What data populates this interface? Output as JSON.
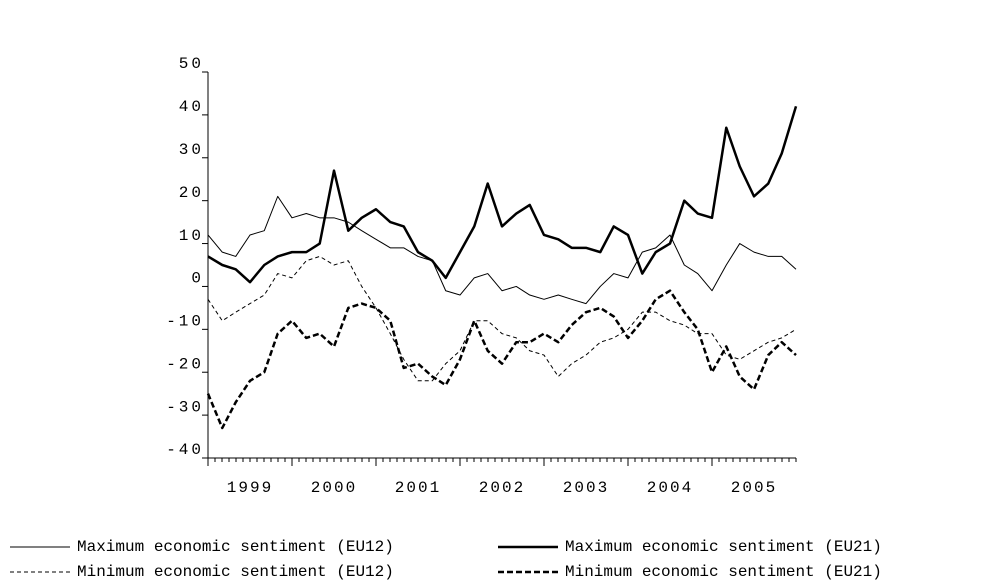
{
  "chart_data": {
    "type": "line",
    "x": [
      1999,
      1999.17,
      1999.33,
      1999.5,
      1999.67,
      1999.83,
      2000,
      2000.17,
      2000.33,
      2000.5,
      2000.67,
      2000.83,
      2001,
      2001.17,
      2001.33,
      2001.5,
      2001.67,
      2001.83,
      2002,
      2002.17,
      2002.33,
      2002.5,
      2002.67,
      2002.83,
      2003,
      2003.17,
      2003.33,
      2003.5,
      2003.67,
      2003.83,
      2004,
      2004.17,
      2004.33,
      2004.5,
      2004.67,
      2004.83,
      2005,
      2005.17,
      2005.33,
      2005.5,
      2005.67,
      2005.83,
      2006
    ],
    "xlim": [
      1999,
      2006
    ],
    "xticks": [
      1999,
      2000,
      2001,
      2002,
      2003,
      2004,
      2005
    ],
    "ylim": [
      -40,
      50
    ],
    "yticks": [
      -40,
      -30,
      -20,
      -10,
      0,
      10,
      20,
      30,
      40,
      50
    ],
    "series": [
      {
        "name": "Maximum economic sentiment (EU12)",
        "color": "#000000",
        "width": 1,
        "dashed": false,
        "values": [
          12,
          8,
          7,
          12,
          13,
          21,
          16,
          17,
          16,
          16,
          15,
          13,
          11,
          9,
          9,
          7,
          6,
          -1,
          -2,
          2,
          3,
          -1,
          0,
          -2,
          -3,
          -2,
          -3,
          -4,
          0,
          3,
          2,
          8,
          9,
          12,
          5,
          3,
          -1,
          5,
          10,
          8,
          7,
          7,
          4
        ]
      },
      {
        "name": "Maximum economic sentiment (EU21)",
        "color": "#000000",
        "width": 2.5,
        "dashed": false,
        "values": [
          7,
          5,
          4,
          1,
          5,
          7,
          8,
          8,
          10,
          27,
          13,
          16,
          18,
          15,
          14,
          8,
          6,
          2,
          8,
          14,
          24,
          14,
          17,
          19,
          12,
          11,
          9,
          9,
          8,
          14,
          12,
          3,
          8,
          10,
          20,
          17,
          16,
          37,
          28,
          21,
          24,
          31,
          42
        ]
      },
      {
        "name": "Minimum economic sentiment (EU12)",
        "color": "#000000",
        "width": 1,
        "dashed": true,
        "values": [
          -3,
          -8,
          -6,
          -4,
          -2,
          3,
          2,
          6,
          7,
          5,
          6,
          0,
          -5,
          -11,
          -17,
          -22,
          -22,
          -18,
          -15,
          -8,
          -8,
          -11,
          -12,
          -15,
          -16,
          -21,
          -18,
          -16,
          -13,
          -12,
          -10,
          -6,
          -6,
          -8,
          -9,
          -11,
          -11,
          -16,
          -17,
          -15,
          -13,
          -12,
          -10
        ]
      },
      {
        "name": "Minimum economic sentiment (EU21)",
        "color": "#000000",
        "width": 2.5,
        "dashed": true,
        "values": [
          -25,
          -33,
          -27,
          -22,
          -20,
          -11,
          -8,
          -12,
          -11,
          -14,
          -5,
          -4,
          -5,
          -8,
          -19,
          -18,
          -21,
          -23,
          -17,
          -8,
          -15,
          -18,
          -13,
          -13,
          -11,
          -13,
          -9,
          -6,
          -5,
          -7,
          -12,
          -8,
          -3,
          -1,
          -6,
          -10,
          -20,
          -14,
          -21,
          -24,
          -16,
          -13,
          -16
        ]
      }
    ]
  }
}
